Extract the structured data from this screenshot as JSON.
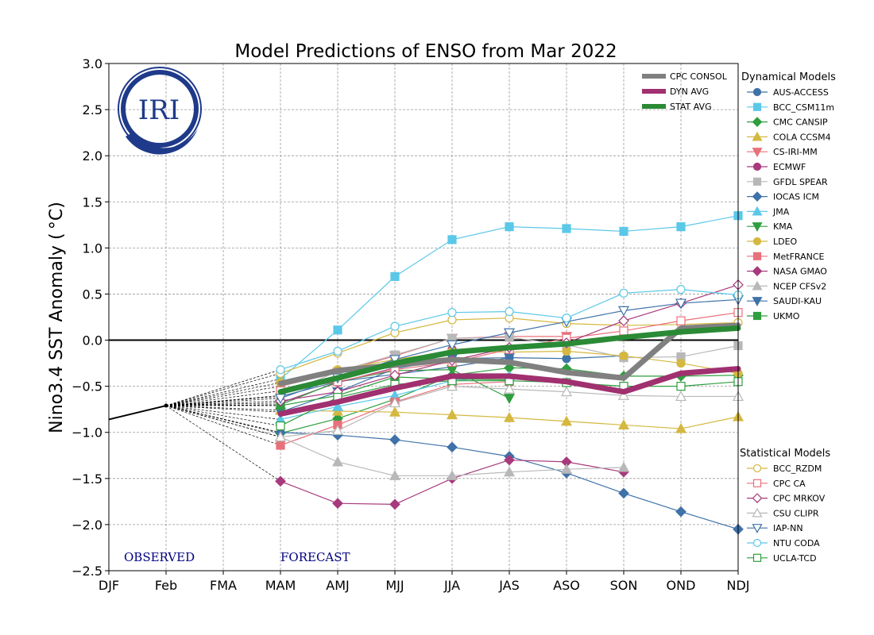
{
  "chart_data": {
    "type": "line",
    "title": "Model Predictions of ENSO from Mar 2022",
    "xlabel": "",
    "ylabel": "Nino3.4 SST Anomaly ( °C)",
    "categories": [
      "DJF",
      "Feb",
      "FMA",
      "MAM",
      "AMJ",
      "MJJ",
      "JJA",
      "JAS",
      "ASO",
      "SON",
      "OND",
      "NDJ"
    ],
    "ylim": [
      -2.5,
      3.0
    ],
    "yticks": [
      3.0,
      2.5,
      2.0,
      1.5,
      1.0,
      0.5,
      0.0,
      -0.5,
      -1.0,
      -1.5,
      -2.0,
      -2.5
    ],
    "ytick_labels": [
      "3.0",
      "2.5",
      "2.0",
      "1.5",
      "1.0",
      "0.5",
      "0.0",
      "−0.5",
      "−1.0",
      "−1.5",
      "−2.0",
      "−2.5"
    ],
    "grid": true,
    "zero_line": 0.0,
    "observed": {
      "x": [
        "DJF",
        "Feb"
      ],
      "values": [
        -0.86,
        -0.71
      ]
    },
    "annotations": {
      "observed": "OBSERVED",
      "forecast": "FORECAST"
    },
    "logo_text": "IRI",
    "legend_summary": [
      {
        "name": "CPC CONSOL",
        "color": "#808080"
      },
      {
        "name": "DYN AVG",
        "color": "#a0306f"
      },
      {
        "name": "STAT AVG",
        "color": "#2a8a35"
      }
    ],
    "legend_dynamical_title": "Dynamical Models",
    "legend_statistical_title": "Statistical Models",
    "series": [
      {
        "name": "AUS-ACCESS",
        "group": "dynamical",
        "color": "#3f72a8",
        "marker": "circle",
        "filled": true,
        "values": [
          null,
          null,
          null,
          -0.61,
          -0.45,
          -0.37,
          -0.29,
          -0.19,
          -0.2,
          -0.17,
          null,
          null
        ]
      },
      {
        "name": "BCC_CSM11m",
        "group": "dynamical",
        "color": "#5bc8e8",
        "marker": "square",
        "filled": true,
        "values": [
          null,
          null,
          null,
          -0.42,
          0.11,
          0.69,
          1.09,
          1.23,
          1.21,
          1.18,
          1.23,
          1.35
        ]
      },
      {
        "name": "CMC CANSIP",
        "group": "dynamical",
        "color": "#2e9e3e",
        "marker": "diamond",
        "filled": true,
        "values": [
          null,
          null,
          null,
          -1.01,
          -0.85,
          -0.64,
          -0.38,
          -0.3,
          -0.31,
          -0.39,
          -0.39,
          -0.38
        ]
      },
      {
        "name": "COLA CCSM4",
        "group": "dynamical",
        "color": "#d4b840",
        "marker": "triangle-up",
        "filled": true,
        "values": [
          null,
          null,
          null,
          -0.76,
          -0.77,
          -0.78,
          -0.81,
          -0.84,
          -0.88,
          -0.92,
          -0.96,
          -0.83
        ]
      },
      {
        "name": "CS-IRI-MM",
        "group": "dynamical",
        "color": "#e8707a",
        "marker": "triangle-down",
        "filled": true,
        "values": [
          null,
          null,
          null,
          -0.5,
          -0.35,
          -0.17,
          0.02,
          0.04,
          0.04,
          null,
          null,
          null
        ]
      },
      {
        "name": "ECMWF",
        "group": "dynamical",
        "color": "#a63a7c",
        "marker": "circle",
        "filled": true,
        "values": [
          null,
          null,
          null,
          -0.68,
          -0.46,
          -0.3,
          -0.1,
          null,
          null,
          null,
          null,
          null
        ]
      },
      {
        "name": "GFDL SPEAR",
        "group": "dynamical",
        "color": "#b8b8b8",
        "marker": "square",
        "filled": true,
        "values": [
          null,
          null,
          null,
          -0.6,
          -0.34,
          -0.16,
          0.02,
          0.03,
          -0.05,
          -0.19,
          -0.18,
          -0.06
        ]
      },
      {
        "name": "IOCAS ICM",
        "group": "dynamical",
        "color": "#3f72a8",
        "marker": "diamond",
        "filled": true,
        "values": [
          null,
          null,
          null,
          -1.0,
          -1.03,
          -1.08,
          -1.16,
          -1.26,
          -1.44,
          -1.66,
          -1.86,
          -2.05
        ]
      },
      {
        "name": "JMA",
        "group": "dynamical",
        "color": "#5bc8e8",
        "marker": "triangle-up",
        "filled": true,
        "values": [
          null,
          null,
          null,
          -0.86,
          -0.72,
          -0.6,
          -0.44,
          -0.39,
          null,
          null,
          null,
          null
        ]
      },
      {
        "name": "KMA",
        "group": "dynamical",
        "color": "#2e9e3e",
        "marker": "triangle-down",
        "filled": true,
        "values": [
          null,
          null,
          null,
          -0.7,
          -0.45,
          -0.33,
          -0.32,
          -0.63,
          null,
          null,
          null,
          null
        ]
      },
      {
        "name": "LDEO",
        "group": "dynamical",
        "color": "#d4b840",
        "marker": "circle",
        "filled": true,
        "values": [
          null,
          null,
          null,
          -0.46,
          -0.32,
          -0.21,
          -0.12,
          -0.13,
          -0.12,
          -0.17,
          -0.25,
          -0.36
        ]
      },
      {
        "name": "MetFRANCE",
        "group": "dynamical",
        "color": "#e8707a",
        "marker": "square",
        "filled": true,
        "values": [
          null,
          null,
          null,
          -1.14,
          -0.92,
          -0.67,
          -0.48,
          -0.45,
          null,
          null,
          null,
          null
        ]
      },
      {
        "name": "NASA GMAO",
        "group": "dynamical",
        "color": "#a63a7c",
        "marker": "diamond",
        "filled": true,
        "values": [
          null,
          null,
          null,
          -1.53,
          -1.77,
          -1.78,
          -1.5,
          -1.3,
          -1.32,
          -1.43,
          null,
          null
        ]
      },
      {
        "name": "NCEP CFSv2",
        "group": "dynamical",
        "color": "#b8b8b8",
        "marker": "triangle-up",
        "filled": true,
        "values": [
          null,
          null,
          null,
          -1.05,
          -1.32,
          -1.47,
          -1.47,
          -1.43,
          -1.4,
          -1.38,
          null,
          null
        ]
      },
      {
        "name": "SAUDI-KAU",
        "group": "dynamical",
        "color": "#3f72a8",
        "marker": "triangle-down",
        "filled": true,
        "values": [
          null,
          null,
          null,
          -0.78,
          -0.56,
          -0.31,
          -0.2,
          -0.19,
          null,
          null,
          null,
          null
        ]
      },
      {
        "name": "UKMO",
        "group": "dynamical",
        "color": "#2e9e3e",
        "marker": "square",
        "filled": true,
        "values": [
          null,
          null,
          null,
          -0.71,
          -0.6,
          -0.4,
          -0.42,
          -0.43,
          null,
          null,
          null,
          null
        ]
      },
      {
        "name": "BCC_RZDM",
        "group": "statistical",
        "color": "#d4b840",
        "marker": "circle",
        "filled": false,
        "values": [
          null,
          null,
          null,
          -0.36,
          -0.14,
          0.08,
          0.22,
          0.24,
          0.18,
          0.16,
          0.17,
          0.19
        ]
      },
      {
        "name": "CPC CA",
        "group": "statistical",
        "color": "#e8707a",
        "marker": "square",
        "filled": false,
        "values": [
          null,
          null,
          null,
          -0.55,
          -0.45,
          -0.32,
          -0.24,
          -0.1,
          0.02,
          0.1,
          0.21,
          0.3
        ]
      },
      {
        "name": "CPC MRKOV",
        "group": "statistical",
        "color": "#a63a7c",
        "marker": "diamond",
        "filled": false,
        "values": [
          null,
          null,
          null,
          -0.66,
          -0.56,
          -0.38,
          -0.22,
          -0.08,
          -0.03,
          0.21,
          0.4,
          0.6
        ]
      },
      {
        "name": "CSU CLIPR",
        "group": "statistical",
        "color": "#b8b8b8",
        "marker": "triangle-up",
        "filled": false,
        "values": [
          null,
          null,
          null,
          -1.05,
          -0.98,
          -0.68,
          -0.5,
          -0.53,
          -0.56,
          -0.6,
          -0.61,
          -0.61
        ]
      },
      {
        "name": "IAP-NN",
        "group": "statistical",
        "color": "#3f72a8",
        "marker": "triangle-down",
        "filled": false,
        "values": [
          null,
          null,
          null,
          -0.63,
          -0.41,
          -0.21,
          -0.05,
          0.08,
          0.2,
          0.32,
          0.4,
          0.44
        ]
      },
      {
        "name": "NTU CODA",
        "group": "statistical",
        "color": "#5bc8e8",
        "marker": "circle",
        "filled": false,
        "values": [
          null,
          null,
          null,
          -0.32,
          -0.12,
          0.15,
          0.3,
          0.31,
          0.24,
          0.51,
          0.55,
          0.49
        ]
      },
      {
        "name": "UCLA-TCD",
        "group": "statistical",
        "color": "#2e9e3e",
        "marker": "square",
        "filled": false,
        "values": [
          null,
          null,
          null,
          -0.93,
          -0.62,
          -0.48,
          -0.44,
          -0.44,
          -0.46,
          -0.5,
          -0.5,
          -0.45
        ]
      }
    ],
    "averages": [
      {
        "name": "CPC CONSOL",
        "color": "#808080",
        "values": [
          null,
          null,
          null,
          -0.47,
          -0.33,
          -0.27,
          -0.21,
          -0.24,
          -0.35,
          -0.41,
          0.13,
          0.16
        ]
      },
      {
        "name": "DYN AVG",
        "color": "#a0306f",
        "values": [
          null,
          null,
          null,
          -0.8,
          -0.67,
          -0.52,
          -0.39,
          -0.39,
          -0.45,
          -0.56,
          -0.36,
          -0.31
        ]
      },
      {
        "name": "STAT AVG",
        "color": "#2a8a35",
        "values": [
          null,
          null,
          null,
          -0.56,
          -0.41,
          -0.25,
          -0.13,
          -0.08,
          -0.04,
          0.03,
          0.09,
          0.13
        ]
      }
    ]
  }
}
